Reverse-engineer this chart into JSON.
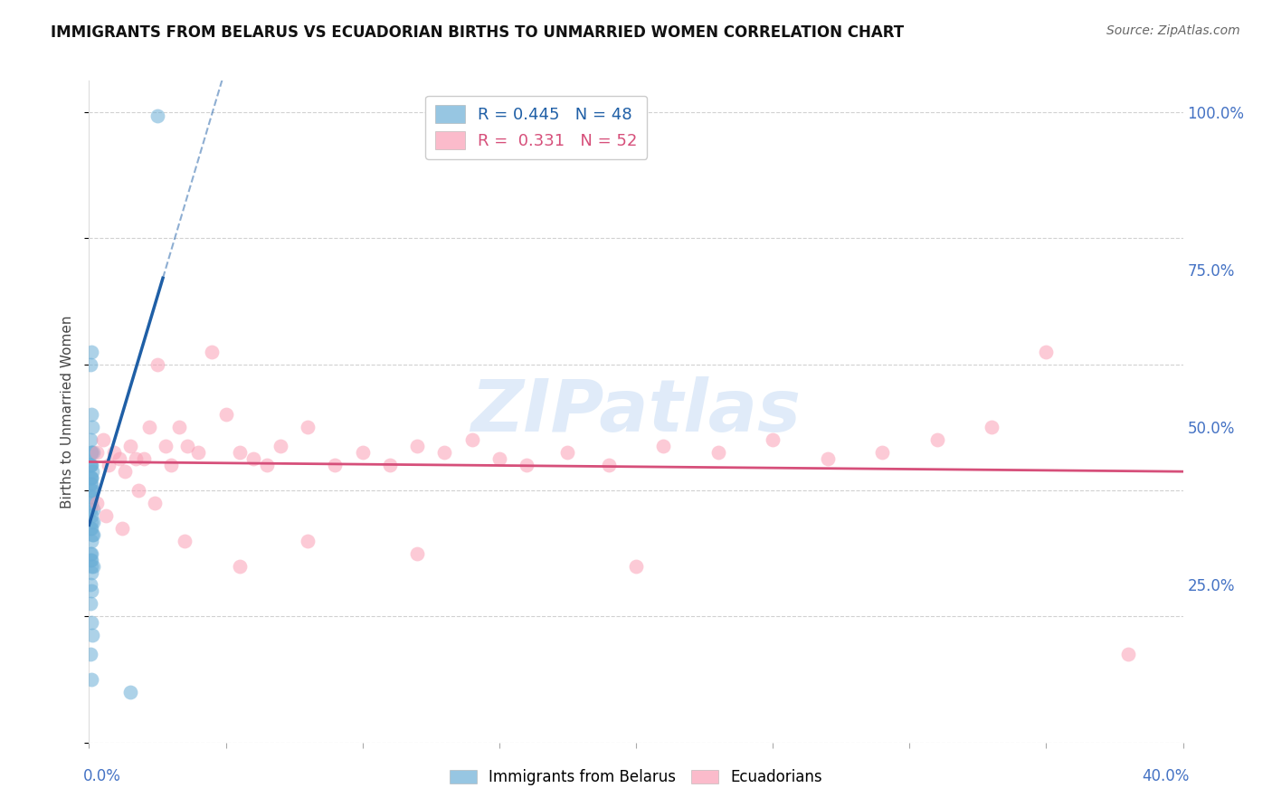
{
  "title": "IMMIGRANTS FROM BELARUS VS ECUADORIAN BIRTHS TO UNMARRIED WOMEN CORRELATION CHART",
  "source": "Source: ZipAtlas.com",
  "ylabel": "Births to Unmarried Women",
  "series1_name": "Immigrants from Belarus",
  "series2_name": "Ecuadorians",
  "series1_color": "#6baed6",
  "series2_color": "#fa9fb5",
  "series1_line_color": "#1f5fa6",
  "series2_line_color": "#d64f7a",
  "watermark_text": "ZIPatlas",
  "blue_R": 0.445,
  "blue_N": 48,
  "pink_R": 0.331,
  "pink_N": 52,
  "xlim": [
    0,
    0.4
  ],
  "ylim": [
    0,
    1.05
  ],
  "xpct_left": "0.0%",
  "xpct_right": "40.0%",
  "ytick_vals": [
    0.0,
    0.25,
    0.5,
    0.75,
    1.0
  ],
  "ytick_labels": [
    "",
    "25.0%",
    "50.0%",
    "75.0%",
    "100.0%"
  ],
  "blue_x": [
    0.0005,
    0.001,
    0.0008,
    0.0012,
    0.0006,
    0.001,
    0.0015,
    0.0008,
    0.0005,
    0.001,
    0.0006,
    0.0012,
    0.0008,
    0.001,
    0.0005,
    0.0008,
    0.0006,
    0.001,
    0.0012,
    0.0006,
    0.001,
    0.0008,
    0.0005,
    0.0015,
    0.001,
    0.0008,
    0.0015,
    0.0005,
    0.001,
    0.0012,
    0.0015,
    0.0008,
    0.0005,
    0.001,
    0.001,
    0.0006,
    0.0008,
    0.0015,
    0.001,
    0.0006,
    0.0008,
    0.0005,
    0.001,
    0.0012,
    0.0006,
    0.001,
    0.015,
    0.025
  ],
  "blue_y": [
    0.6,
    0.62,
    0.52,
    0.5,
    0.48,
    0.46,
    0.46,
    0.46,
    0.44,
    0.44,
    0.44,
    0.43,
    0.42,
    0.42,
    0.42,
    0.41,
    0.41,
    0.4,
    0.4,
    0.39,
    0.39,
    0.38,
    0.37,
    0.37,
    0.36,
    0.35,
    0.35,
    0.34,
    0.34,
    0.33,
    0.33,
    0.32,
    0.3,
    0.3,
    0.29,
    0.29,
    0.28,
    0.28,
    0.27,
    0.25,
    0.24,
    0.22,
    0.19,
    0.17,
    0.14,
    0.1,
    0.08,
    0.995
  ],
  "pink_x": [
    0.003,
    0.005,
    0.007,
    0.009,
    0.011,
    0.013,
    0.015,
    0.017,
    0.02,
    0.022,
    0.025,
    0.028,
    0.03,
    0.033,
    0.036,
    0.04,
    0.045,
    0.05,
    0.055,
    0.06,
    0.065,
    0.07,
    0.08,
    0.09,
    0.1,
    0.11,
    0.12,
    0.13,
    0.14,
    0.15,
    0.16,
    0.175,
    0.19,
    0.21,
    0.23,
    0.25,
    0.27,
    0.29,
    0.31,
    0.33,
    0.003,
    0.006,
    0.012,
    0.018,
    0.024,
    0.035,
    0.055,
    0.08,
    0.12,
    0.2,
    0.35,
    0.38
  ],
  "pink_y": [
    0.46,
    0.48,
    0.44,
    0.46,
    0.45,
    0.43,
    0.47,
    0.45,
    0.45,
    0.5,
    0.6,
    0.47,
    0.44,
    0.5,
    0.47,
    0.46,
    0.62,
    0.52,
    0.46,
    0.45,
    0.44,
    0.47,
    0.5,
    0.44,
    0.46,
    0.44,
    0.47,
    0.46,
    0.48,
    0.45,
    0.44,
    0.46,
    0.44,
    0.47,
    0.46,
    0.48,
    0.45,
    0.46,
    0.48,
    0.5,
    0.38,
    0.36,
    0.34,
    0.4,
    0.38,
    0.32,
    0.28,
    0.32,
    0.3,
    0.28,
    0.62,
    0.14
  ]
}
